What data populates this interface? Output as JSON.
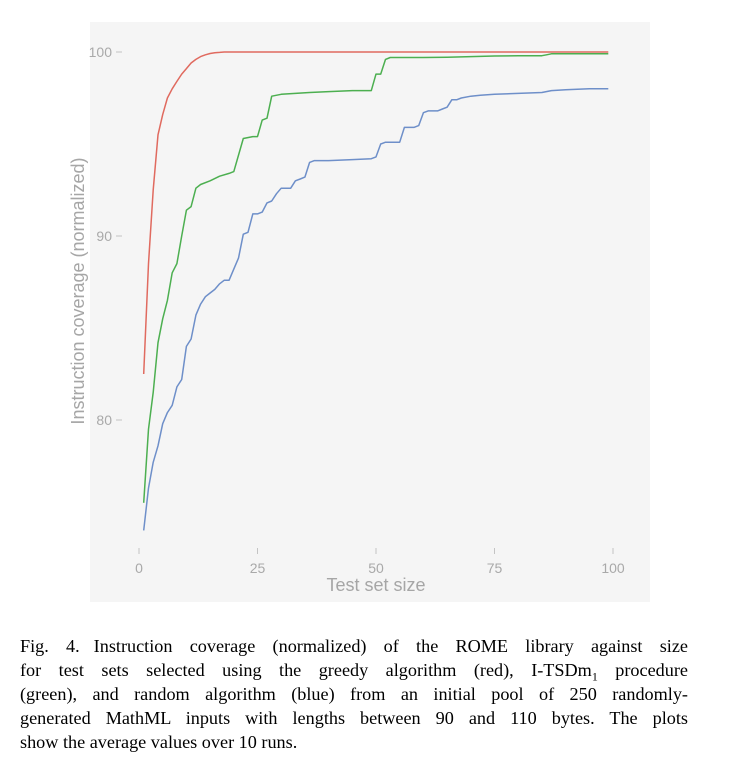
{
  "chart_data": {
    "type": "line",
    "title": "",
    "xlabel": "Test set size",
    "ylabel": "Instruction coverage (normalized)",
    "xlim": [
      0,
      100
    ],
    "ylim": [
      73,
      100
    ],
    "x_ticks": [
      0,
      25,
      50,
      75,
      100
    ],
    "y_ticks": [
      80,
      90,
      100
    ],
    "grid": false,
    "legend": "none",
    "panel_background": "#f5f5f5",
    "series": [
      {
        "color": "#e06a5f",
        "x": [
          1,
          2,
          3,
          4,
          5,
          6,
          7,
          8,
          9,
          10,
          11,
          12,
          13,
          14,
          15,
          16,
          17,
          18,
          20,
          25,
          30,
          40,
          50,
          60,
          70,
          80,
          90,
          99
        ],
        "y": [
          82.5,
          88.5,
          92.5,
          95.5,
          96.6,
          97.5,
          98.0,
          98.4,
          98.8,
          99.1,
          99.4,
          99.6,
          99.75,
          99.85,
          99.92,
          99.96,
          99.98,
          100.0,
          100.0,
          100.0,
          100.0,
          100.0,
          100.0,
          100.0,
          100.0,
          100.0,
          100.0,
          100.0
        ]
      },
      {
        "color": "#4caf50",
        "x": [
          1,
          2,
          3,
          4,
          5,
          6,
          7,
          8,
          9,
          10,
          11,
          12,
          13,
          15,
          17,
          19,
          20,
          22,
          24,
          25,
          26,
          27,
          28,
          30,
          33,
          36,
          40,
          45,
          49,
          50,
          51,
          52,
          53,
          55,
          60,
          65,
          70,
          75,
          80,
          85,
          86,
          87,
          90,
          95,
          99
        ],
        "y": [
          75.5,
          79.5,
          81.5,
          84.2,
          85.5,
          86.5,
          88.0,
          88.5,
          90.0,
          91.4,
          91.6,
          92.6,
          92.8,
          93.0,
          93.25,
          93.4,
          93.5,
          95.3,
          95.4,
          95.4,
          96.3,
          96.4,
          97.6,
          97.7,
          97.75,
          97.8,
          97.85,
          97.9,
          97.9,
          98.8,
          98.8,
          99.6,
          99.7,
          99.7,
          99.7,
          99.72,
          99.75,
          99.78,
          99.8,
          99.8,
          99.85,
          99.9,
          99.9,
          99.9,
          99.9
        ]
      },
      {
        "color": "#6e8fc9",
        "x": [
          1,
          2,
          3,
          4,
          5,
          6,
          7,
          8,
          9,
          10,
          11,
          12,
          13,
          14,
          15,
          16,
          17,
          18,
          19,
          20,
          21,
          22,
          23,
          24,
          25,
          26,
          27,
          28,
          29,
          30,
          31,
          32,
          33,
          34,
          35,
          36,
          37,
          40,
          45,
          49,
          50,
          51,
          52,
          53,
          55,
          56,
          57,
          58,
          59,
          60,
          61,
          62,
          63,
          64,
          65,
          66,
          67,
          68,
          70,
          72,
          75,
          80,
          85,
          87,
          90,
          95,
          99
        ],
        "y": [
          74.0,
          76.3,
          77.7,
          78.6,
          79.8,
          80.4,
          80.8,
          81.8,
          82.2,
          84.0,
          84.4,
          85.7,
          86.3,
          86.7,
          86.9,
          87.1,
          87.4,
          87.6,
          87.6,
          88.2,
          88.8,
          90.1,
          90.2,
          91.2,
          91.2,
          91.3,
          91.8,
          91.9,
          92.3,
          92.6,
          92.6,
          92.6,
          93.0,
          93.1,
          93.2,
          94.0,
          94.1,
          94.1,
          94.15,
          94.2,
          94.3,
          95.0,
          95.1,
          95.1,
          95.1,
          95.9,
          95.9,
          95.9,
          96.0,
          96.7,
          96.8,
          96.8,
          96.8,
          96.9,
          97.0,
          97.4,
          97.4,
          97.5,
          97.6,
          97.65,
          97.7,
          97.75,
          97.8,
          97.9,
          97.95,
          98.0,
          98.0
        ]
      }
    ]
  },
  "caption": {
    "label": "Fig. 4.",
    "lines": [
      "Instruction coverage (normalized) of the ROME library against size",
      "for test sets selected using the greedy algorithm (red), I-TSDm",
      "(green), and random algorithm (blue) from an initial pool of 250 randomly-",
      "generated MathML inputs with lengths between 90 and 110 bytes. The plots",
      "show the average values over 10 runs."
    ],
    "subscript": "1",
    "line2_tail": " procedure"
  }
}
